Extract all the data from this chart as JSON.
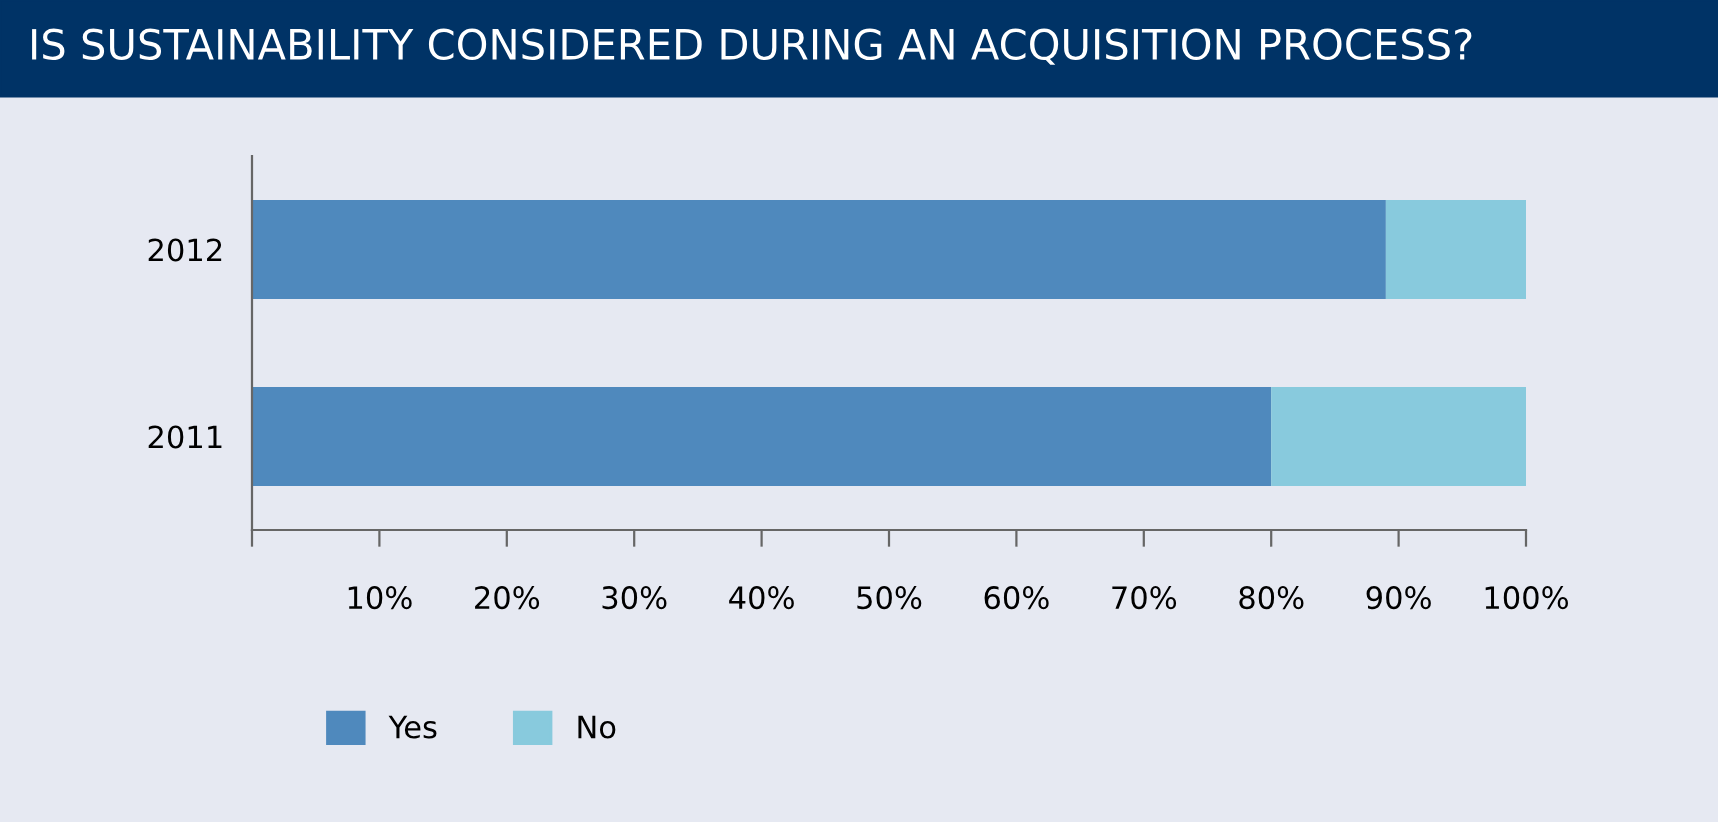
{
  "chart_data": {
    "type": "bar",
    "orientation": "horizontal",
    "stacked": true,
    "title": "IS SUSTAINABILITY CONSIDERED DURING AN ACQUISITION PROCESS?",
    "categories": [
      "2012",
      "2011"
    ],
    "series": [
      {
        "name": "Yes",
        "color": "#4f89bd",
        "values": [
          89,
          80
        ]
      },
      {
        "name": "No",
        "color": "#88cadd",
        "values": [
          11,
          20
        ]
      }
    ],
    "xlim": [
      0,
      100
    ],
    "xticks": [
      {
        "value": 0,
        "label": null
      },
      {
        "value": 10,
        "label": "10%"
      },
      {
        "value": 20,
        "label": "20%"
      },
      {
        "value": 30,
        "label": "30%"
      },
      {
        "value": 40,
        "label": "40%"
      },
      {
        "value": 50,
        "label": "50%"
      },
      {
        "value": 60,
        "label": "60%"
      },
      {
        "value": 70,
        "label": "70%"
      },
      {
        "value": 80,
        "label": "80%"
      },
      {
        "value": 90,
        "label": "90%"
      },
      {
        "value": 100,
        "label": "100%"
      }
    ],
    "grid": false,
    "legend": "bottom left"
  }
}
